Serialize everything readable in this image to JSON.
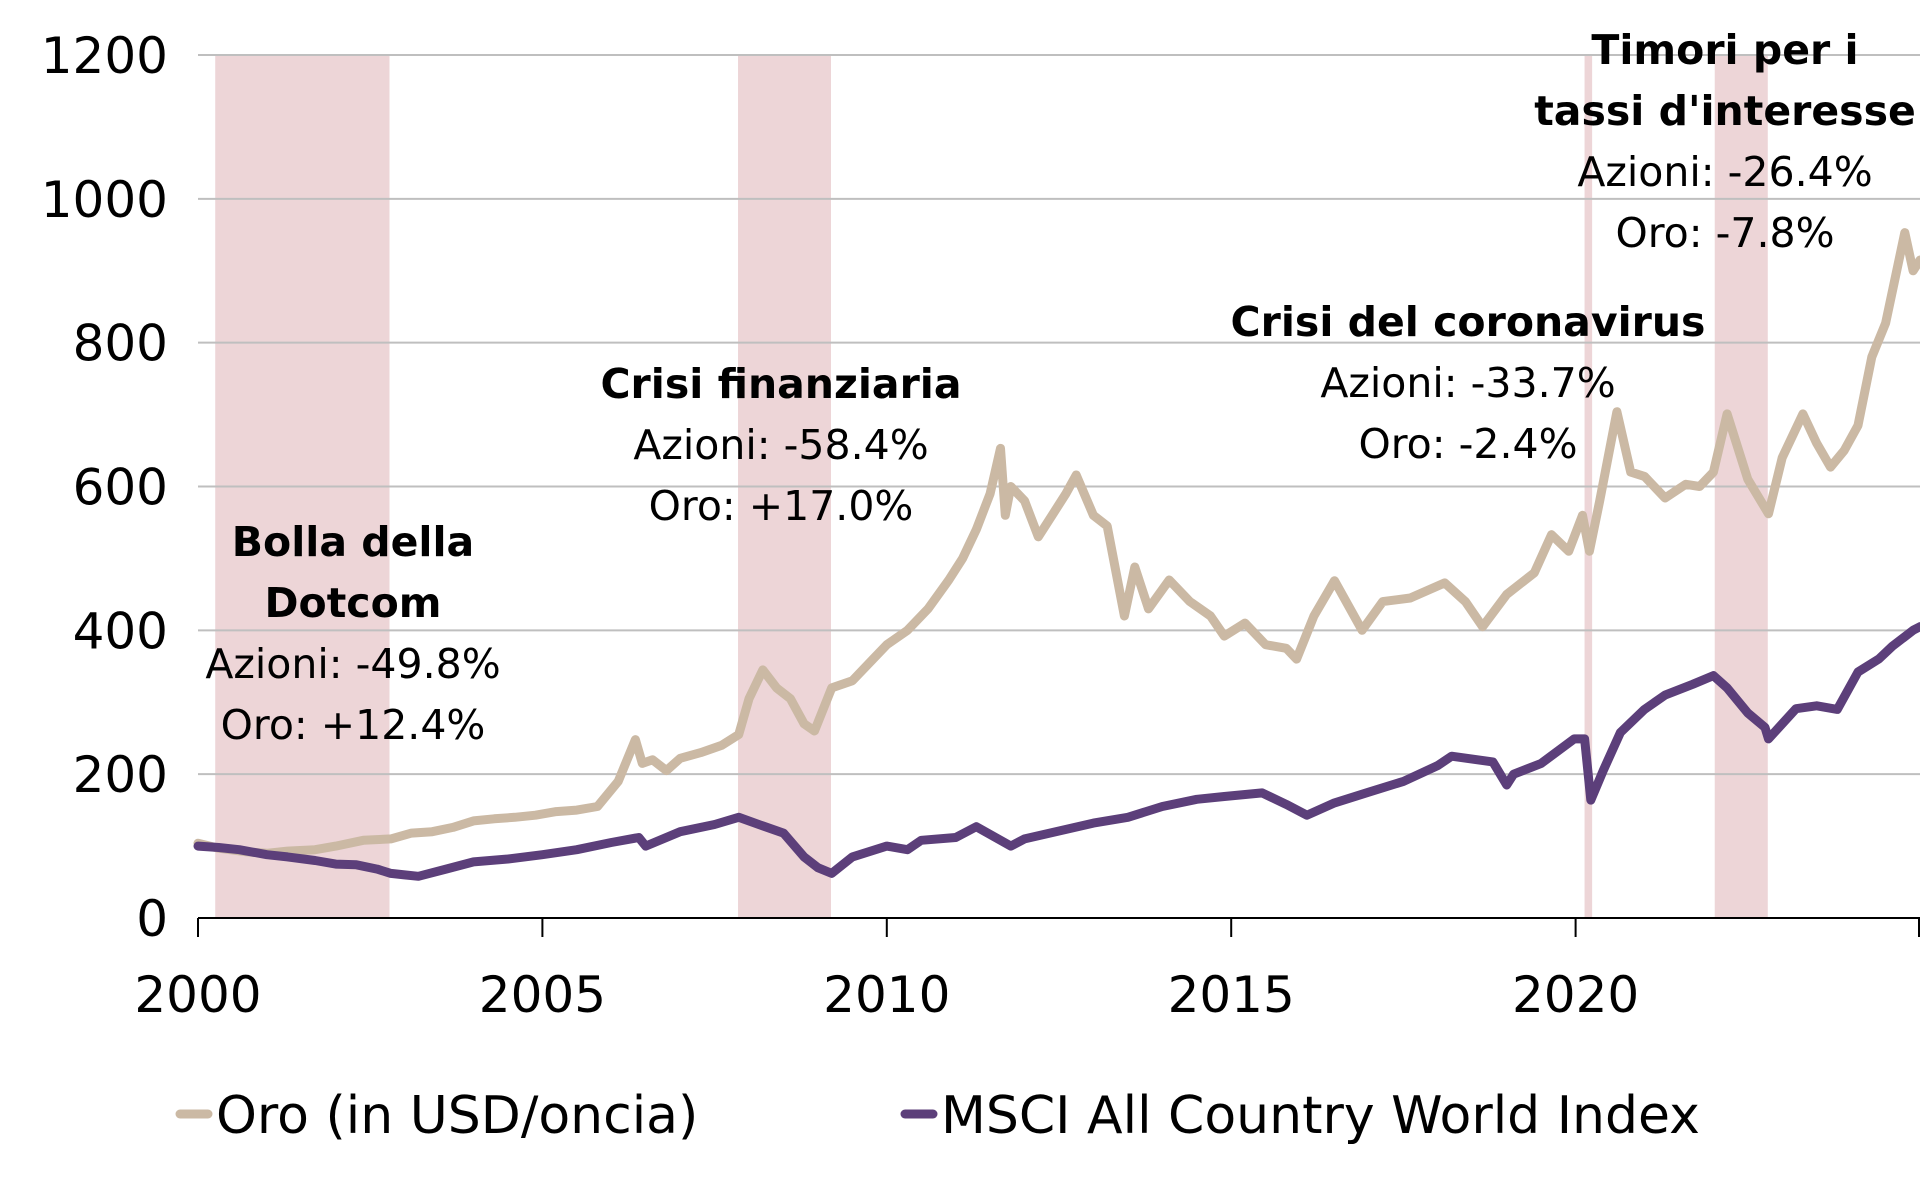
{
  "chart_data": {
    "type": "line",
    "title": "",
    "xlabel": "",
    "ylabel": "",
    "xlim": [
      2000,
      2025
    ],
    "ylim": [
      0,
      1200
    ],
    "grid": true,
    "legend_position": "bottom",
    "x_ticks": [
      {
        "value": 2000,
        "label": "2000"
      },
      {
        "value": 2005,
        "label": "2005"
      },
      {
        "value": 2010,
        "label": "2010"
      },
      {
        "value": 2015,
        "label": "2015"
      },
      {
        "value": 2020,
        "label": "2020"
      }
    ],
    "y_ticks": [
      {
        "value": 0,
        "label": "0"
      },
      {
        "value": 200,
        "label": "200"
      },
      {
        "value": 400,
        "label": "400"
      },
      {
        "value": 600,
        "label": "600"
      },
      {
        "value": 800,
        "label": "800"
      },
      {
        "value": 1000,
        "label": "1000"
      },
      {
        "value": 1200,
        "label": "1200"
      }
    ],
    "shaded_periods": [
      {
        "name": "dotcom",
        "start": 2000.25,
        "end": 2002.78
      },
      {
        "name": "financial-crisis",
        "start": 2007.84,
        "end": 2009.19
      },
      {
        "name": "coronavirus",
        "start": 2020.13,
        "end": 2020.24
      },
      {
        "name": "rate-fears",
        "start": 2022.02,
        "end": 2022.79
      }
    ],
    "annotations": [
      {
        "name": "dotcom",
        "title_lines": [
          "Bolla della",
          "Dotcom"
        ],
        "stats": [
          "Azioni: -49.8%",
          "Oro: +12.4%"
        ]
      },
      {
        "name": "financial-crisis",
        "title_lines": [
          "Crisi finanziaria"
        ],
        "stats": [
          "Azioni: -58.4%",
          "Oro: +17.0%"
        ]
      },
      {
        "name": "coronavirus",
        "title_lines": [
          "Crisi del coronavirus"
        ],
        "stats": [
          "Azioni: -33.7%",
          "Oro: -2.4%"
        ]
      },
      {
        "name": "rate-fears",
        "title_lines": [
          "Timori per i",
          "tassi d'interesse"
        ],
        "stats": [
          "Azioni: -26.4%",
          "Oro: -7.8%"
        ]
      }
    ],
    "series": [
      {
        "name": "Oro (in USD/oncia)",
        "color": "#CBB9A4",
        "x": [
          2000.0,
          2000.3,
          2000.7,
          2001.0,
          2001.3,
          2001.7,
          2002.0,
          2002.4,
          2002.8,
          2003.1,
          2003.4,
          2003.7,
          2004.0,
          2004.3,
          2004.6,
          2004.9,
          2005.2,
          2005.5,
          2005.8,
          2006.1,
          2006.35,
          2006.45,
          2006.6,
          2006.8,
          2007.0,
          2007.3,
          2007.6,
          2007.85,
          2008.0,
          2008.2,
          2008.4,
          2008.6,
          2008.8,
          2008.95,
          2009.2,
          2009.5,
          2009.8,
          2010.0,
          2010.3,
          2010.6,
          2010.9,
          2011.1,
          2011.3,
          2011.5,
          2011.65,
          2011.72,
          2011.8,
          2012.0,
          2012.2,
          2012.4,
          2012.6,
          2012.75,
          2013.0,
          2013.2,
          2013.45,
          2013.6,
          2013.8,
          2014.1,
          2014.4,
          2014.7,
          2014.9,
          2015.2,
          2015.5,
          2015.8,
          2015.95,
          2016.2,
          2016.5,
          2016.9,
          2017.2,
          2017.6,
          2018.1,
          2018.4,
          2018.65,
          2019.0,
          2019.4,
          2019.65,
          2019.9,
          2020.1,
          2020.2,
          2020.35,
          2020.6,
          2020.8,
          2021.0,
          2021.3,
          2021.6,
          2021.8,
          2022.0,
          2022.2,
          2022.5,
          2022.8,
          2023.0,
          2023.3,
          2023.5,
          2023.7,
          2023.9,
          2024.1,
          2024.3,
          2024.5,
          2024.78,
          2024.9,
          2025.0
        ],
        "values": [
          104,
          97,
          92,
          90,
          93,
          95,
          100,
          108,
          110,
          118,
          120,
          126,
          135,
          138,
          140,
          143,
          148,
          150,
          155,
          190,
          248,
          215,
          220,
          205,
          222,
          230,
          240,
          255,
          305,
          345,
          320,
          305,
          270,
          260,
          320,
          330,
          360,
          380,
          400,
          430,
          470,
          500,
          540,
          590,
          653,
          560,
          600,
          580,
          530,
          560,
          590,
          616,
          560,
          545,
          420,
          488,
          430,
          470,
          440,
          420,
          392,
          410,
          380,
          375,
          360,
          420,
          469,
          400,
          440,
          445,
          466,
          440,
          405,
          450,
          480,
          533,
          510,
          560,
          510,
          580,
          704,
          620,
          614,
          584,
          603,
          600,
          620,
          701,
          610,
          562,
          640,
          701,
          660,
          627,
          650,
          685,
          780,
          827,
          953,
          900,
          915
        ]
      },
      {
        "name": "MSCI All Country World Index",
        "color": "#5C3F7A",
        "x": [
          2000.0,
          2000.3,
          2000.6,
          2001.0,
          2001.3,
          2001.7,
          2002.0,
          2002.3,
          2002.6,
          2002.8,
          2003.0,
          2003.2,
          2003.6,
          2004.0,
          2004.5,
          2005.0,
          2005.5,
          2006.0,
          2006.4,
          2006.5,
          2007.0,
          2007.5,
          2007.85,
          2008.2,
          2008.5,
          2008.8,
          2009.0,
          2009.2,
          2009.5,
          2010.0,
          2010.3,
          2010.5,
          2011.0,
          2011.3,
          2011.8,
          2012.0,
          2012.5,
          2013.0,
          2013.5,
          2014.0,
          2014.5,
          2014.9,
          2015.45,
          2015.8,
          2016.1,
          2016.5,
          2017.0,
          2017.5,
          2018.0,
          2018.2,
          2018.8,
          2019.0,
          2019.1,
          2019.5,
          2019.98,
          2020.13,
          2020.22,
          2020.4,
          2020.65,
          2021.0,
          2021.3,
          2021.7,
          2022.0,
          2022.2,
          2022.5,
          2022.75,
          2022.8,
          2023.0,
          2023.2,
          2023.5,
          2023.8,
          2024.1,
          2024.4,
          2024.6,
          2024.9,
          2025.0
        ],
        "values": [
          100,
          98,
          95,
          88,
          85,
          80,
          75,
          74,
          68,
          62,
          60,
          58,
          68,
          78,
          82,
          88,
          95,
          105,
          112,
          100,
          120,
          130,
          140,
          128,
          118,
          85,
          70,
          62,
          85,
          100,
          95,
          108,
          112,
          127,
          100,
          110,
          121,
          132,
          140,
          155,
          165,
          169,
          174,
          158,
          143,
          160,
          175,
          190,
          212,
          225,
          217,
          185,
          200,
          215,
          249,
          249,
          164,
          205,
          258,
          290,
          310,
          325,
          337,
          320,
          285,
          265,
          249,
          270,
          291,
          295,
          290,
          342,
          360,
          378,
          400,
          405
        ]
      }
    ]
  }
}
